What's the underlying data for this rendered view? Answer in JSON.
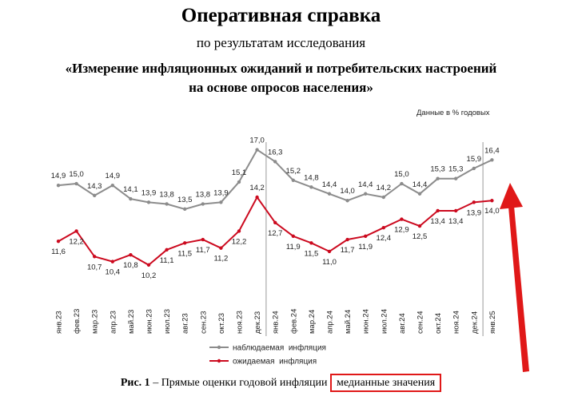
{
  "header": {
    "title": "Оперативная справка",
    "subtitle": "по результатам исследования",
    "subtitle_line1": "«Измерение инфляционных ожиданий и потребительских настроений",
    "subtitle_line2": "на основе опросов населения»",
    "units": "Данные в % годовых"
  },
  "caption": {
    "prefix": "Рис. 1",
    "dash": " – Прямые оценки годовой инфляции ",
    "highlight": "медианные значения"
  },
  "colors": {
    "observed": "#8c8c8c",
    "expected": "#cc0a1f",
    "annotation": "#e01818",
    "separator": "#9a9a9a"
  },
  "chart_data": {
    "type": "line",
    "categories": [
      "янв.23",
      "фев.23",
      "мар.23",
      "апр.23",
      "май.23",
      "июн.23",
      "июл.23",
      "авг.23",
      "сен.23",
      "окт.23",
      "ноя.23",
      "дек.23",
      "янв.24",
      "фев.24",
      "мар.24",
      "апр.24",
      "май.24",
      "июн.24",
      "июл.24",
      "авг.24",
      "сен.24",
      "окт.24",
      "ноя.24",
      "дек.24",
      "янв.25"
    ],
    "series": [
      {
        "name": "наблюдаемая  инфляция",
        "values": [
          14.9,
          15.0,
          14.3,
          14.9,
          14.1,
          13.9,
          13.8,
          13.5,
          13.8,
          13.9,
          15.1,
          17.0,
          16.3,
          15.2,
          14.8,
          14.4,
          14.0,
          14.4,
          14.2,
          15.0,
          14.4,
          15.3,
          15.3,
          15.9,
          16.4
        ],
        "labels": [
          "14,9",
          "15,0",
          "14,3",
          "14,9",
          "14,1",
          "13,9",
          "13,8",
          "13,5",
          "13,8",
          "13,9",
          "15,1",
          "17,0",
          "16,3",
          "15,2",
          "14,8",
          "14,4",
          "14,0",
          "14,4",
          "14,2",
          "15,0",
          "14,4",
          "15,3",
          "15,3",
          "15,9",
          "16,4"
        ]
      },
      {
        "name": "ожидаемая  инфляция",
        "values": [
          11.6,
          12.2,
          10.7,
          10.4,
          10.8,
          10.2,
          11.1,
          11.5,
          11.7,
          11.2,
          12.2,
          14.2,
          12.7,
          11.9,
          11.5,
          11.0,
          11.7,
          11.9,
          12.4,
          12.9,
          12.5,
          13.4,
          13.4,
          13.9,
          14.0
        ],
        "labels": [
          "11,6",
          "12,2",
          "10,7",
          "10,4",
          "10,8",
          "10,2",
          "11,1",
          "11,5",
          "11,7",
          "11,2",
          "12,2",
          "14,2",
          "12,7",
          "11,9",
          "11,5",
          "11,0",
          "11,7",
          "11,9",
          "12,4",
          "12,9",
          "12,5",
          "13,4",
          "13,4",
          "13,9",
          "14,0"
        ]
      }
    ],
    "grid": false,
    "y_axis_shown": false,
    "separators_after": [
      "дек.23",
      "дек.24"
    ],
    "legend_position": "bottom-left"
  }
}
